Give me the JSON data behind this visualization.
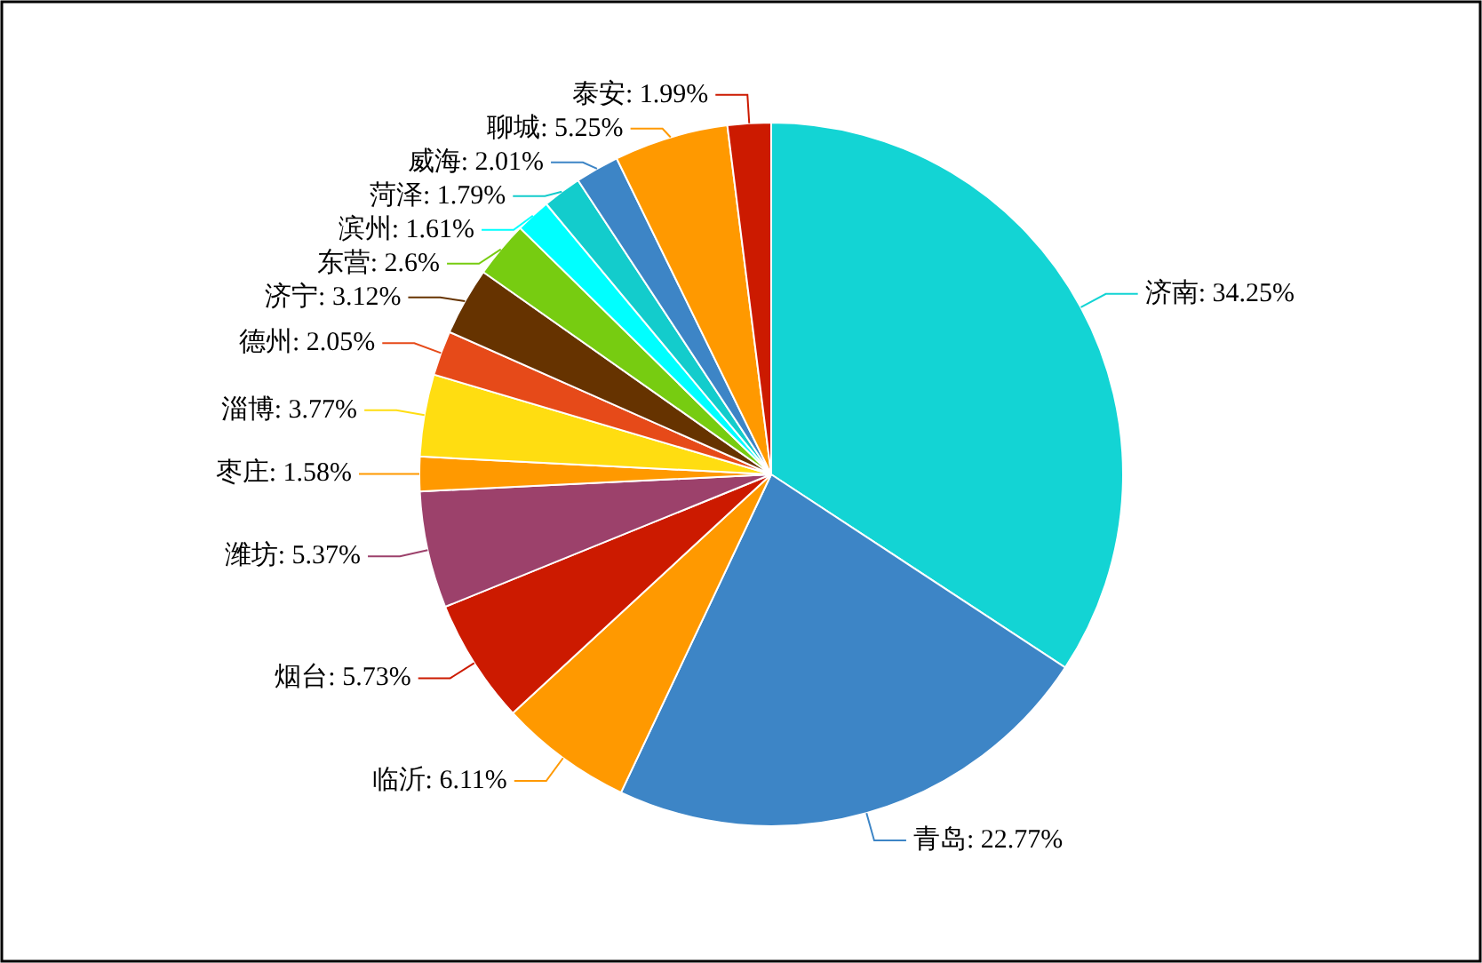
{
  "chart_data": {
    "type": "pie",
    "categories": [
      "济南",
      "青岛",
      "临沂",
      "烟台",
      "潍坊",
      "枣庄",
      "淄博",
      "德州",
      "济宁",
      "东营",
      "滨州",
      "菏泽",
      "威海",
      "聊城",
      "泰安"
    ],
    "values": [
      34.25,
      22.77,
      6.11,
      5.73,
      5.37,
      1.58,
      3.77,
      2.05,
      3.12,
      2.6,
      1.61,
      1.79,
      2.01,
      5.25,
      1.99
    ],
    "value_labels": [
      "34.25%",
      "22.77%",
      "6.11%",
      "5.73%",
      "5.37%",
      "1.58%",
      "3.77%",
      "2.05%",
      "3.12%",
      "2.6%",
      "1.61%",
      "1.79%",
      "2.01%",
      "5.25%",
      "1.99%"
    ],
    "colors": [
      "#13d4d4",
      "#3d85c6",
      "#ff9900",
      "#cc1a00",
      "#9c416b",
      "#ff9900",
      "#ffdd11",
      "#e64a19",
      "#663300",
      "#77cc11",
      "#00ffff",
      "#13cccc",
      "#3d85c6",
      "#ff9900",
      "#cc1a00"
    ]
  }
}
